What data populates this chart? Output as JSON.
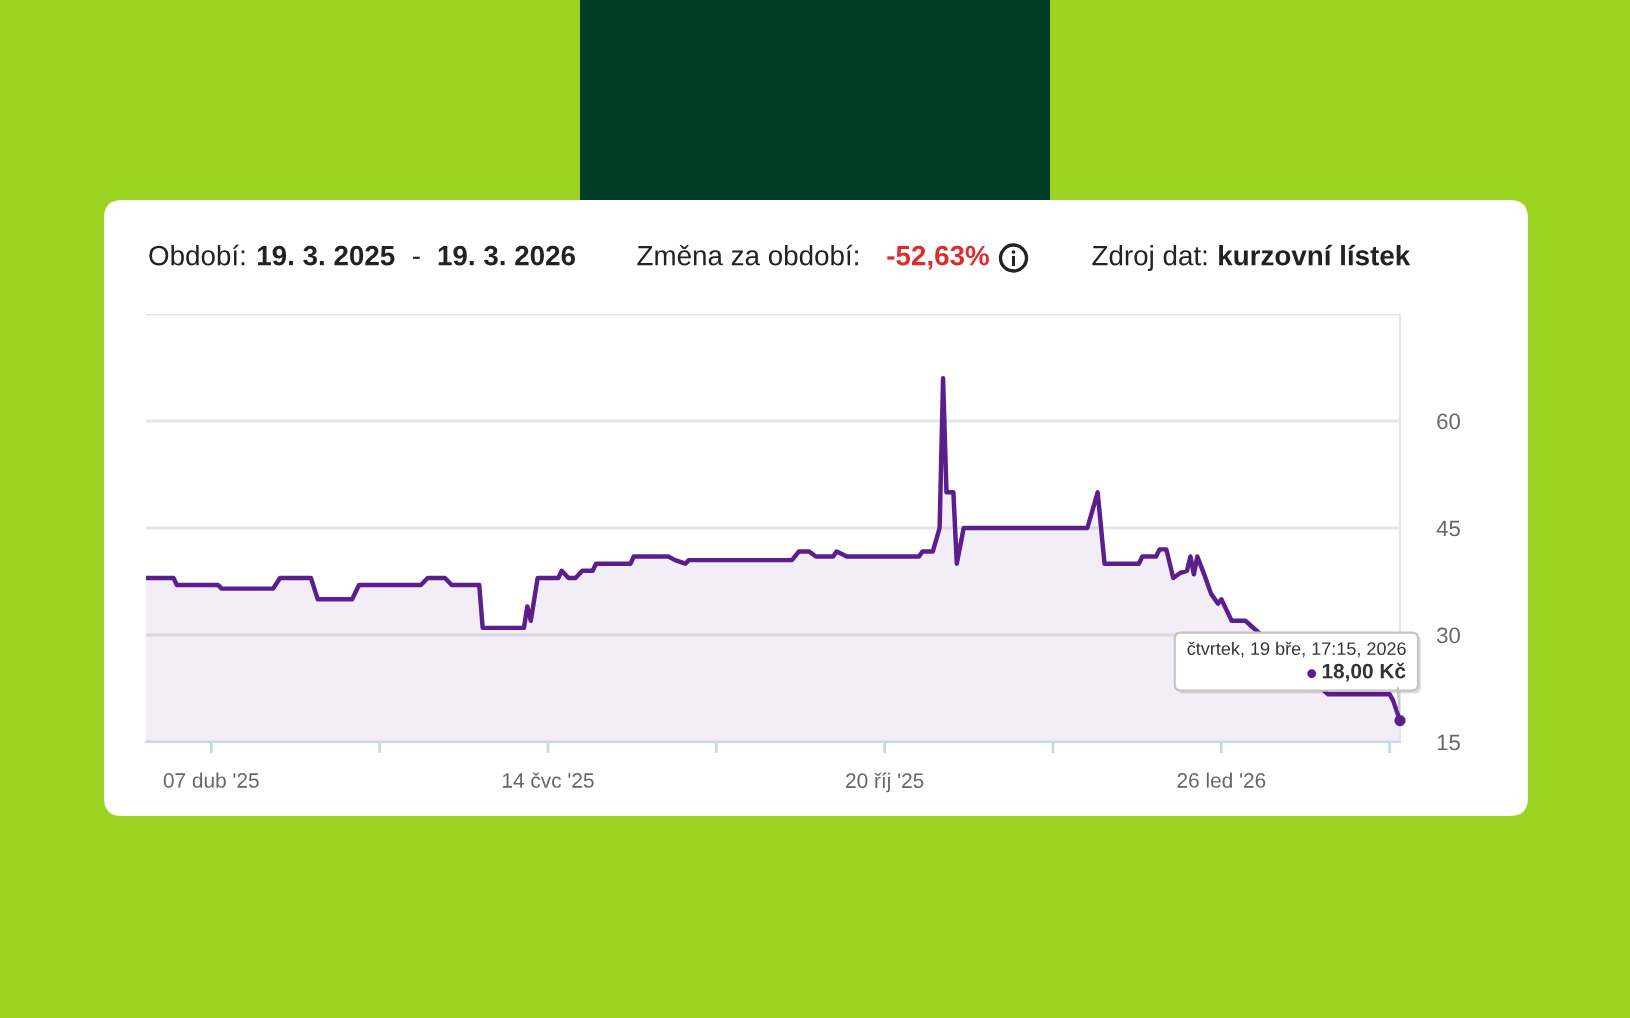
{
  "chart_data": {
    "type": "area",
    "x": [
      "2025-03-19",
      "2025-03-27",
      "2025-03-28",
      "2025-04-09",
      "2025-04-10",
      "2025-04-25",
      "2025-04-27",
      "2025-05-06",
      "2025-05-08",
      "2025-05-18",
      "2025-05-20",
      "2025-06-07",
      "2025-06-09",
      "2025-06-14",
      "2025-06-16",
      "2025-06-24",
      "2025-06-25",
      "2025-07-07",
      "2025-07-08",
      "2025-07-09",
      "2025-07-11",
      "2025-07-17",
      "2025-07-18",
      "2025-07-20",
      "2025-07-22",
      "2025-07-24",
      "2025-07-27",
      "2025-07-28",
      "2025-08-07",
      "2025-08-08",
      "2025-08-18",
      "2025-08-20",
      "2025-08-23",
      "2025-08-24",
      "2025-09-23",
      "2025-09-25",
      "2025-09-28",
      "2025-09-30",
      "2025-10-05",
      "2025-10-06",
      "2025-10-09",
      "2025-10-30",
      "2025-10-31",
      "2025-11-03",
      "2025-11-05",
      "2025-11-06",
      "2025-11-07",
      "2025-11-09",
      "2025-11-10",
      "2025-11-12",
      "2025-12-18",
      "2025-12-21",
      "2025-12-23",
      "2026-01-02",
      "2026-01-03",
      "2026-01-07",
      "2026-01-08",
      "2026-01-10",
      "2026-01-12",
      "2026-01-14",
      "2026-01-16",
      "2026-01-17",
      "2026-01-18",
      "2026-01-19",
      "2026-01-21",
      "2026-01-23",
      "2026-01-25",
      "2026-01-26",
      "2026-01-28",
      "2026-01-29",
      "2026-02-02",
      "2026-02-26",
      "2026-03-01",
      "2026-03-07",
      "2026-03-16",
      "2026-03-17",
      "2026-03-19"
    ],
    "series": [
      {
        "color": "#5c1e8c",
        "values": [
          38.0,
          38.0,
          37.0,
          37.0,
          36.5,
          36.5,
          38.0,
          38.0,
          35.0,
          35.0,
          37.0,
          37.0,
          38.0,
          38.0,
          37.0,
          37.0,
          31.0,
          31.0,
          34.0,
          32.0,
          38.0,
          38.0,
          39.0,
          38.0,
          38.0,
          39.0,
          39.0,
          40.0,
          40.0,
          41.0,
          41.0,
          40.5,
          40.0,
          40.5,
          40.5,
          41.7,
          41.7,
          41.0,
          41.0,
          41.7,
          41.0,
          41.0,
          41.7,
          41.7,
          45.0,
          66.0,
          50.0,
          50.0,
          40.0,
          45.0,
          45.0,
          50.0,
          40.0,
          40.0,
          41.0,
          41.0,
          42.0,
          42.0,
          38.0,
          38.7,
          39.0,
          41.0,
          38.5,
          41.0,
          38.5,
          35.8,
          34.4,
          35.0,
          33.0,
          32.0,
          32.0,
          21.7,
          21.7,
          21.7,
          21.7,
          20.8,
          18.0
        ]
      }
    ],
    "xlim": [
      "2025-03-19",
      "2026-03-19"
    ],
    "xticks": [
      {
        "value": "2025-04-07",
        "label": "07 dub '25"
      },
      {
        "value": "2025-05-26",
        "label": null
      },
      {
        "value": "2025-07-14",
        "label": "14 čvc '25"
      },
      {
        "value": "2025-09-01",
        "label": null
      },
      {
        "value": "2025-10-20",
        "label": "20 říj '25"
      },
      {
        "value": "2025-12-08",
        "label": null
      },
      {
        "value": "2026-01-26",
        "label": "26 led '26"
      },
      {
        "value": "2026-03-16",
        "label": null
      }
    ],
    "ylim": [
      15,
      75
    ],
    "yticks": [
      15,
      30,
      45,
      60,
      {
        "value": 75,
        "label": null
      }
    ],
    "grid": "y",
    "annotations": [
      "Období:",
      "19. 3. 2025",
      "-",
      "19. 3. 2026",
      "Změna za období:",
      "-52,63%",
      "Zdroj dat:",
      "kurzovní lístek",
      "čtvrtek, 19 bře, 17:15, 2026",
      {
        "text": "18,00 Kč",
        "x": "2026-03-19",
        "y": 18
      }
    ]
  }
}
